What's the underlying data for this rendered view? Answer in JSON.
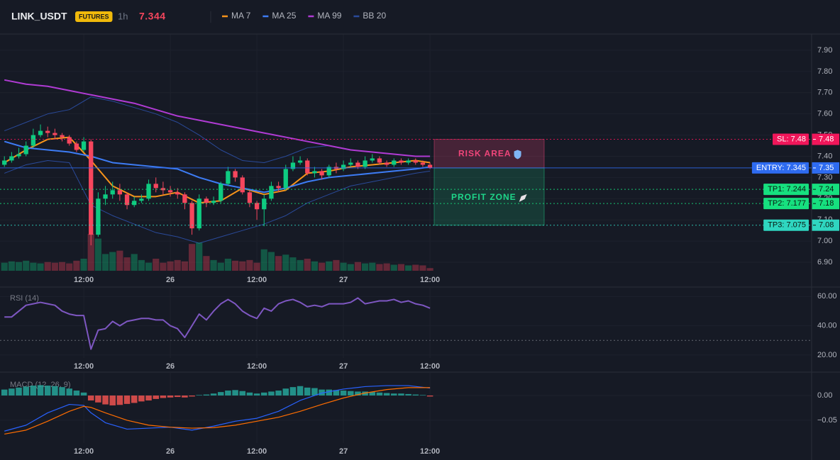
{
  "header": {
    "symbol": "LINK_USDT",
    "badge": "FUTURES",
    "interval": "1h",
    "price": 7.344,
    "price_color": "#f6465d"
  },
  "chart_data": [
    {
      "type": "candlestick",
      "up_color": "#0ecb81",
      "down_color": "#f6465d",
      "open": [
        7.36,
        7.38,
        7.4,
        7.41,
        7.45,
        7.5,
        7.52,
        7.51,
        7.5,
        7.49,
        7.46,
        7.43,
        7.47,
        7.03,
        7.2,
        7.22,
        7.24,
        7.22,
        7.17,
        7.19,
        7.2,
        7.27,
        7.25,
        7.24,
        7.23,
        7.22,
        7.18,
        7.06,
        7.2,
        7.18,
        7.19,
        7.27,
        7.33,
        7.3,
        7.23,
        7.18,
        7.15,
        7.2,
        7.26,
        7.25,
        7.34,
        7.37,
        7.38,
        7.32,
        7.33,
        7.31,
        7.35,
        7.34,
        7.36,
        7.37,
        7.35,
        7.38,
        7.39,
        7.37,
        7.36,
        7.38,
        7.37,
        7.38,
        7.37,
        7.36
      ],
      "high": [
        7.4,
        7.42,
        7.44,
        7.47,
        7.53,
        7.55,
        7.54,
        7.53,
        7.51,
        7.5,
        7.47,
        7.49,
        7.48,
        7.23,
        7.26,
        7.28,
        7.27,
        7.23,
        7.21,
        7.22,
        7.29,
        7.3,
        7.28,
        7.26,
        7.25,
        7.23,
        7.19,
        7.22,
        7.21,
        7.21,
        7.28,
        7.35,
        7.34,
        7.31,
        7.24,
        7.19,
        7.22,
        7.28,
        7.28,
        7.36,
        7.4,
        7.4,
        7.39,
        7.35,
        7.34,
        7.36,
        7.37,
        7.38,
        7.39,
        7.38,
        7.4,
        7.41,
        7.4,
        7.38,
        7.39,
        7.39,
        7.39,
        7.39,
        7.38,
        7.37
      ],
      "low": [
        7.35,
        7.37,
        7.39,
        7.4,
        7.44,
        7.49,
        7.49,
        7.48,
        7.47,
        7.45,
        7.42,
        7.42,
        6.98,
        7.02,
        7.17,
        7.2,
        7.19,
        7.15,
        7.16,
        7.18,
        7.19,
        7.23,
        7.22,
        7.21,
        7.2,
        7.15,
        7.03,
        7.05,
        7.16,
        7.17,
        7.18,
        7.26,
        7.28,
        7.22,
        7.16,
        7.1,
        7.07,
        7.19,
        7.23,
        7.24,
        7.33,
        7.36,
        7.31,
        7.3,
        7.29,
        7.3,
        7.32,
        7.33,
        7.35,
        7.34,
        7.34,
        7.37,
        7.36,
        7.35,
        7.35,
        7.36,
        7.36,
        7.36,
        7.35,
        7.34
      ],
      "close": [
        7.38,
        7.4,
        7.41,
        7.45,
        7.5,
        7.52,
        7.51,
        7.5,
        7.49,
        7.46,
        7.43,
        7.47,
        7.03,
        7.2,
        7.22,
        7.24,
        7.22,
        7.17,
        7.19,
        7.2,
        7.27,
        7.25,
        7.24,
        7.23,
        7.22,
        7.18,
        7.06,
        7.2,
        7.18,
        7.19,
        7.27,
        7.33,
        7.3,
        7.23,
        7.18,
        7.15,
        7.2,
        7.26,
        7.25,
        7.34,
        7.37,
        7.38,
        7.32,
        7.33,
        7.31,
        7.35,
        7.34,
        7.36,
        7.37,
        7.35,
        7.38,
        7.39,
        7.37,
        7.36,
        7.38,
        7.37,
        7.38,
        7.37,
        7.36,
        7.345
      ],
      "volume": [
        12,
        14,
        13,
        15,
        12,
        11,
        13,
        12,
        13,
        11,
        15,
        18,
        55,
        48,
        25,
        28,
        30,
        20,
        25,
        16,
        12,
        18,
        12,
        14,
        16,
        14,
        40,
        42,
        22,
        16,
        12,
        18,
        15,
        14,
        16,
        12,
        32,
        28,
        22,
        24,
        20,
        16,
        18,
        14,
        12,
        14,
        16,
        12,
        10,
        13,
        11,
        12,
        10,
        11,
        9,
        10,
        8,
        9,
        8,
        4
      ],
      "series": [
        {
          "name": "MA 7",
          "color": "#f7931a",
          "x": [
            0,
            3,
            6,
            9,
            12,
            15,
            18,
            21,
            24,
            27,
            30,
            33,
            36,
            39,
            42,
            45,
            48,
            51,
            54,
            57,
            59
          ],
          "values": [
            7.37,
            7.43,
            7.48,
            7.49,
            7.38,
            7.26,
            7.21,
            7.21,
            7.23,
            7.18,
            7.19,
            7.25,
            7.22,
            7.24,
            7.32,
            7.33,
            7.35,
            7.36,
            7.37,
            7.38,
            7.37
          ]
        },
        {
          "name": "MA 25",
          "color": "#3d7cf5",
          "x": [
            0,
            3,
            6,
            9,
            12,
            15,
            18,
            21,
            24,
            27,
            30,
            33,
            36,
            39,
            42,
            45,
            48,
            51,
            54,
            57,
            59
          ],
          "values": [
            7.47,
            7.44,
            7.43,
            7.42,
            7.4,
            7.37,
            7.36,
            7.35,
            7.34,
            7.3,
            7.27,
            7.25,
            7.23,
            7.25,
            7.28,
            7.3,
            7.31,
            7.32,
            7.33,
            7.34,
            7.35
          ]
        },
        {
          "name": "MA 99",
          "color": "#b03bd4",
          "x": [
            0,
            3,
            6,
            9,
            12,
            15,
            18,
            21,
            24,
            27,
            30,
            33,
            36,
            39,
            42,
            45,
            48,
            51,
            54,
            57,
            59
          ],
          "values": [
            7.76,
            7.74,
            7.73,
            7.71,
            7.69,
            7.67,
            7.65,
            7.62,
            7.59,
            7.57,
            7.55,
            7.53,
            7.51,
            7.49,
            7.47,
            7.45,
            7.43,
            7.42,
            7.41,
            7.4,
            7.4
          ]
        }
      ],
      "bollinger": {
        "name": "BB 20",
        "color": "#2a4a9a",
        "x": [
          0,
          3,
          6,
          9,
          12,
          15,
          18,
          21,
          24,
          27,
          30,
          33,
          36,
          39,
          42,
          45,
          48,
          51,
          54,
          57,
          59
        ],
        "upper": [
          7.52,
          7.56,
          7.6,
          7.62,
          7.68,
          7.66,
          7.63,
          7.6,
          7.56,
          7.5,
          7.43,
          7.38,
          7.37,
          7.4,
          7.44,
          7.45,
          7.43,
          7.42,
          7.41,
          7.4,
          7.4
        ],
        "lower": [
          7.32,
          7.36,
          7.38,
          7.37,
          7.17,
          7.12,
          7.08,
          7.04,
          7.02,
          6.99,
          7.02,
          7.05,
          7.08,
          7.12,
          7.18,
          7.22,
          7.26,
          7.28,
          7.3,
          7.32,
          7.33
        ]
      },
      "levels": [
        {
          "value": 7.48,
          "label": "SL: 7.48",
          "axis_label": "7.48",
          "color": "#f0165a",
          "text_color": "#ffffff",
          "style": "dotted"
        },
        {
          "value": 7.345,
          "label": "ENTRY: 7.345",
          "axis_label": "7.35",
          "color": "#2e6bf0",
          "text_color": "#ffffff",
          "style": "solid"
        },
        {
          "value": 7.244,
          "label": "TP1: 7.244",
          "axis_label": "7.24",
          "color": "#16e07f",
          "text_color": "#0b1a12",
          "style": "dotted"
        },
        {
          "value": 7.177,
          "label": "TP2: 7.177",
          "axis_label": "7.18",
          "color": "#16e07f",
          "text_color": "#0b1a12",
          "style": "dotted"
        },
        {
          "value": 7.075,
          "label": "TP3: 7.075",
          "axis_label": "7.08",
          "color": "#2fd6c0",
          "text_color": "#0b1a12",
          "style": "dotted"
        }
      ],
      "zones": [
        {
          "label": "RISK AREA",
          "from": 7.345,
          "to": 7.48,
          "color": "#f0457a"
        },
        {
          "label": "PROFIT ZONE",
          "from": 7.075,
          "to": 7.345,
          "color": "#1ed68a"
        }
      ],
      "xlim": [
        -0.61,
        111.9
      ],
      "xticks": [
        {
          "value": 11,
          "label": "12:00"
        },
        {
          "value": 23,
          "label": "26"
        },
        {
          "value": 35,
          "label": "12:00"
        },
        {
          "value": 47,
          "label": "27"
        },
        {
          "value": 59,
          "label": "12:00"
        }
      ],
      "ylim": [
        6.86,
        7.97
      ],
      "yticks": [
        {
          "value": 6.9,
          "label": "6.90"
        },
        {
          "value": 7.0,
          "label": "7.00"
        },
        {
          "value": 7.1,
          "label": "7.10"
        },
        {
          "value": 7.2,
          "label": "7.20"
        },
        {
          "value": 7.3,
          "label": "7.30"
        },
        {
          "value": 7.4,
          "label": "7.40"
        },
        {
          "value": 7.5,
          "label": "7.50"
        },
        {
          "value": 7.6,
          "label": "7.60"
        },
        {
          "value": 7.7,
          "label": "7.70"
        },
        {
          "value": 7.8,
          "label": "7.80"
        },
        {
          "value": 7.9,
          "label": "7.90"
        }
      ],
      "grid": true
    },
    {
      "type": "line",
      "title": "RSI (14)",
      "color": "#7e57c2",
      "values": [
        46,
        46,
        50,
        54,
        55,
        56,
        55,
        54,
        50,
        48,
        47,
        47,
        24,
        37,
        38,
        43,
        40,
        43,
        44,
        45,
        45,
        44,
        44,
        40,
        38,
        32,
        40,
        48,
        44,
        50,
        55,
        58,
        55,
        50,
        47,
        45,
        52,
        50,
        55,
        57,
        58,
        56,
        53,
        54,
        53,
        55,
        55,
        55,
        56,
        59,
        55,
        56,
        57,
        57,
        58,
        56,
        57,
        55,
        54,
        52
      ],
      "level": 30,
      "xlim": [
        -0.61,
        111.9
      ],
      "xticks": [
        {
          "value": 11,
          "label": "12:00"
        },
        {
          "value": 23,
          "label": "26"
        },
        {
          "value": 35,
          "label": "12:00"
        },
        {
          "value": 47,
          "label": "27"
        },
        {
          "value": 59,
          "label": "12:00"
        }
      ],
      "ylim": [
        18,
        65
      ],
      "yticks": [
        {
          "value": 20,
          "label": "20.00"
        },
        {
          "value": 40,
          "label": "40.00"
        },
        {
          "value": 60,
          "label": "60.00"
        }
      ],
      "grid": true
    },
    {
      "type": "macd",
      "title": "MACD (12, 26, 9)",
      "pos_color": "#26a69a",
      "neg_color": "#ef5350",
      "histogram": [
        0.012,
        0.014,
        0.016,
        0.018,
        0.02,
        0.021,
        0.02,
        0.019,
        0.017,
        0.014,
        0.01,
        0.006,
        -0.01,
        -0.014,
        -0.018,
        -0.02,
        -0.019,
        -0.017,
        -0.015,
        -0.012,
        -0.01,
        -0.007,
        -0.005,
        -0.004,
        -0.003,
        -0.004,
        -0.002,
        0.001,
        0.002,
        0.004,
        0.007,
        0.01,
        0.011,
        0.009,
        0.006,
        0.004,
        0.006,
        0.008,
        0.01,
        0.014,
        0.017,
        0.019,
        0.016,
        0.015,
        0.012,
        0.012,
        0.011,
        0.01,
        0.009,
        0.008,
        0.008,
        0.007,
        0.006,
        0.005,
        0.004,
        0.004,
        0.003,
        0.002,
        0.001,
        -0.002
      ],
      "macd": {
        "color": "#2962ff",
        "x": [
          0,
          3,
          6,
          9,
          11,
          12,
          14,
          17,
          20,
          23,
          26,
          29,
          32,
          35,
          38,
          41,
          44,
          47,
          50,
          53,
          56,
          59
        ],
        "values": [
          -0.072,
          -0.06,
          -0.035,
          -0.018,
          -0.02,
          -0.035,
          -0.055,
          -0.068,
          -0.066,
          -0.064,
          -0.07,
          -0.062,
          -0.052,
          -0.046,
          -0.032,
          -0.01,
          0.005,
          0.013,
          0.018,
          0.02,
          0.02,
          0.015
        ]
      },
      "signal": {
        "color": "#ff6d00",
        "x": [
          0,
          3,
          6,
          9,
          11,
          12,
          14,
          17,
          20,
          23,
          26,
          29,
          32,
          35,
          38,
          41,
          44,
          47,
          50,
          53,
          56,
          59
        ],
        "values": [
          -0.078,
          -0.07,
          -0.052,
          -0.032,
          -0.022,
          -0.024,
          -0.035,
          -0.05,
          -0.06,
          -0.064,
          -0.066,
          -0.065,
          -0.06,
          -0.052,
          -0.044,
          -0.032,
          -0.018,
          -0.005,
          0.005,
          0.012,
          0.016,
          0.016
        ]
      },
      "xlim": [
        -0.61,
        111.9
      ],
      "xticks": [
        {
          "value": 11,
          "label": "12:00"
        },
        {
          "value": 23,
          "label": "26"
        },
        {
          "value": 35,
          "label": "12:00"
        },
        {
          "value": 47,
          "label": "27"
        },
        {
          "value": 59,
          "label": "12:00"
        }
      ],
      "ylim": [
        -0.096,
        0.043
      ],
      "yticks": [
        {
          "value": -0.05,
          "label": "−0.05"
        },
        {
          "value": 0,
          "label": "0.00"
        }
      ],
      "grid": true
    }
  ]
}
